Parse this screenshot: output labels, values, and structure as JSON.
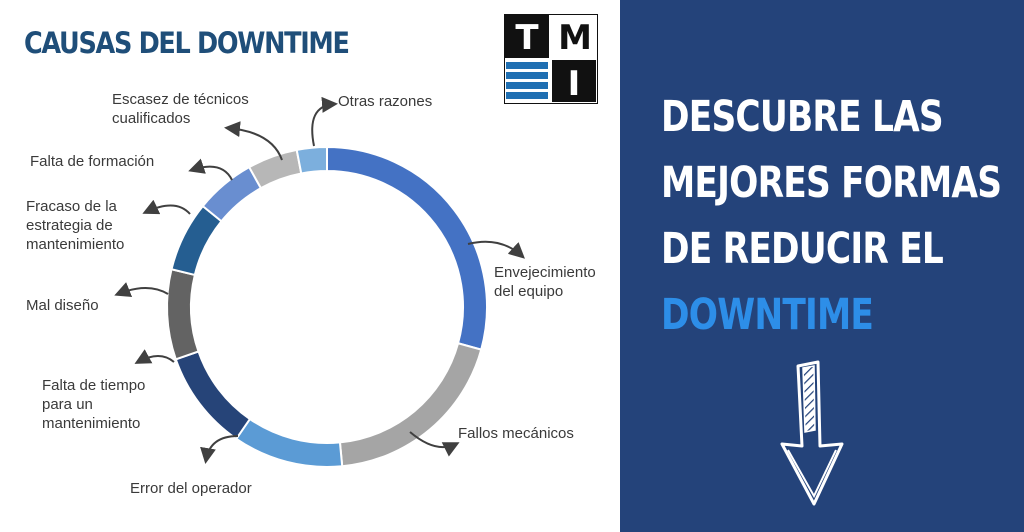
{
  "left": {
    "title": "CAUSAS DEL DOWNTIME",
    "logo": {
      "letters": [
        "T",
        "M",
        "I"
      ]
    }
  },
  "chart_data": {
    "type": "pie",
    "variant": "donut",
    "categories": [
      "Envejecimiento del equipo",
      "Fallos mecánicos",
      "Error del operador",
      "Falta de tiempo para un mantenimiento",
      "Mal diseño",
      "Fracaso de la estrategia de mantenimiento",
      "Falta de formación",
      "Escasez de técnicos cualificados",
      "Otras razones"
    ],
    "values": [
      29,
      19,
      11,
      10,
      9,
      7,
      6,
      5,
      3
    ],
    "colors": [
      "#4472c4",
      "#a5a5a5",
      "#5b9bd5",
      "#264478",
      "#636363",
      "#255e91",
      "#698ed0",
      "#b7b7b7",
      "#7cafdd"
    ],
    "label_lines": [
      [
        "Envejecimiento",
        "del equipo"
      ],
      [
        "Fallos mecánicos"
      ],
      [
        "Error del operador"
      ],
      [
        "Falta de tiempo",
        "para un",
        "mantenimiento"
      ],
      [
        "Mal diseño"
      ],
      [
        "Fracaso de la",
        "estrategia de",
        "mantenimiento"
      ],
      [
        "Falta de formación"
      ],
      [
        "Escasez de técnicos",
        "cualificados"
      ],
      [
        "Otras razones"
      ]
    ]
  },
  "right": {
    "headline": [
      "DESCUBRE LAS",
      "MEJORES FORMAS",
      "DE REDUCIR EL"
    ],
    "headline_accent": "DOWNTIME",
    "accent_color": "#2d8ee8",
    "icon": "arrow-down-icon"
  }
}
